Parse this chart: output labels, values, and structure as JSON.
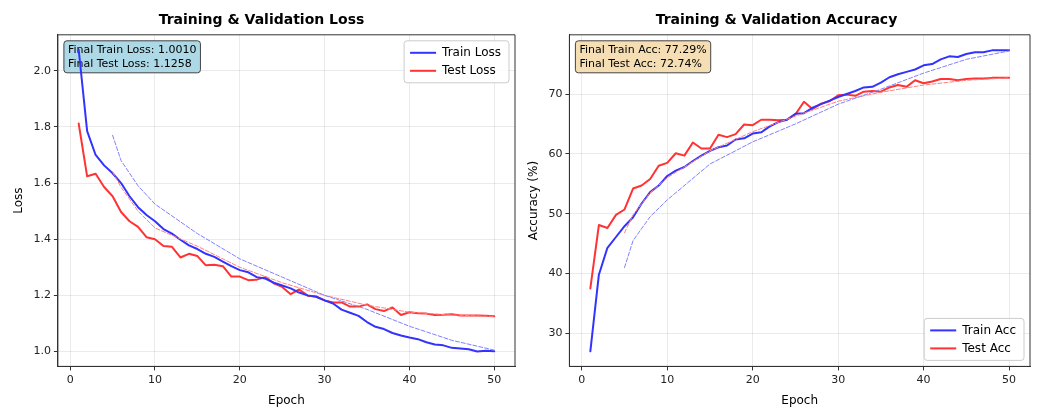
{
  "chart_data": [
    {
      "type": "line",
      "title": "Training & Validation Loss",
      "xlabel": "Epoch",
      "ylabel": "Loss",
      "x": [
        1,
        2,
        3,
        4,
        5,
        6,
        7,
        8,
        9,
        10,
        11,
        12,
        13,
        14,
        15,
        16,
        17,
        18,
        19,
        20,
        21,
        22,
        23,
        24,
        25,
        26,
        27,
        28,
        29,
        30,
        31,
        32,
        33,
        34,
        35,
        36,
        37,
        38,
        39,
        40,
        41,
        42,
        43,
        44,
        45,
        46,
        47,
        48,
        49,
        50
      ],
      "series": [
        {
          "name": "Train Loss",
          "color": "#3333ff",
          "values": [
            2.075,
            1.785,
            1.7,
            1.663,
            1.635,
            1.6,
            1.553,
            1.514,
            1.486,
            1.464,
            1.436,
            1.42,
            1.398,
            1.378,
            1.365,
            1.348,
            1.337,
            1.32,
            1.304,
            1.29,
            1.282,
            1.265,
            1.26,
            1.245,
            1.235,
            1.225,
            1.21,
            1.2,
            1.195,
            1.182,
            1.171,
            1.149,
            1.138,
            1.127,
            1.105,
            1.088,
            1.08,
            1.066,
            1.057,
            1.05,
            1.044,
            1.033,
            1.025,
            1.022,
            1.013,
            1.011,
            1.008,
            1.0,
            1.003,
            1.001
          ]
        },
        {
          "name": "Test Loss",
          "color": "#ff3333",
          "values": [
            1.812,
            1.624,
            1.633,
            1.586,
            1.553,
            1.497,
            1.464,
            1.444,
            1.407,
            1.4,
            1.376,
            1.373,
            1.335,
            1.348,
            1.34,
            1.307,
            1.309,
            1.304,
            1.267,
            1.267,
            1.254,
            1.256,
            1.265,
            1.243,
            1.23,
            1.204,
            1.221,
            1.199,
            1.196,
            1.182,
            1.175,
            1.175,
            1.16,
            1.16,
            1.168,
            1.151,
            1.144,
            1.157,
            1.13,
            1.14,
            1.136,
            1.135,
            1.13,
            1.131,
            1.133,
            1.128,
            1.128,
            1.128,
            1.127,
            1.126
          ]
        },
        {
          "type": "line",
          "line_style": "dashed",
          "color": "#8080ff",
          "x": [
            5,
            6,
            8,
            10,
            15,
            20,
            25,
            30,
            35,
            40,
            45,
            50
          ],
          "values": [
            1.77,
            1.68,
            1.59,
            1.525,
            1.42,
            1.33,
            1.265,
            1.2,
            1.15,
            1.09,
            1.04,
            1.005
          ]
        },
        {
          "type": "line",
          "line_style": "dashed",
          "color": "#ff8080",
          "x": [
            5,
            6,
            8,
            10,
            15,
            20,
            25,
            30,
            35,
            40,
            45,
            50
          ],
          "values": [
            1.64,
            1.585,
            1.5,
            1.44,
            1.375,
            1.3,
            1.245,
            1.2,
            1.165,
            1.14,
            1.13,
            1.125
          ]
        }
      ],
      "xlim": [
        -1.45,
        52.45
      ],
      "xticks": [
        0,
        10,
        20,
        30,
        40,
        50
      ],
      "ylim": [
        0.947,
        2.128
      ],
      "yticks": [
        {
          "value": 1,
          "label": "1.0"
        },
        1.2,
        1.4,
        1.6,
        1.8,
        {
          "value": 2,
          "label": "2.0"
        }
      ],
      "grid": true,
      "legend": "top right",
      "marker": "none",
      "line_style": "solid",
      "annotations": [
        "Final Train Loss: 1.0010",
        "Final Test Loss: 1.1258"
      ]
    },
    {
      "type": "line",
      "title": "Training & Validation Accuracy",
      "xlabel": "Epoch",
      "ylabel": "Accuracy (%)",
      "x": [
        1,
        2,
        3,
        4,
        5,
        6,
        7,
        8,
        9,
        10,
        11,
        12,
        13,
        14,
        15,
        16,
        17,
        18,
        19,
        20,
        21,
        22,
        23,
        24,
        25,
        26,
        27,
        28,
        29,
        30,
        31,
        32,
        33,
        34,
        35,
        36,
        37,
        38,
        39,
        40,
        41,
        42,
        43,
        44,
        45,
        46,
        47,
        48,
        49,
        50
      ],
      "series": [
        {
          "name": "Train Acc",
          "color": "#3333ff",
          "values": [
            27.0,
            39.8,
            44.3,
            46.1,
            47.9,
            49.4,
            51.7,
            53.6,
            54.7,
            56.3,
            57.2,
            57.8,
            58.8,
            59.7,
            60.5,
            61.1,
            61.4,
            62.4,
            62.6,
            63.4,
            63.6,
            64.6,
            65.3,
            65.7,
            66.7,
            66.8,
            67.7,
            68.3,
            68.9,
            69.5,
            70.0,
            70.5,
            71.1,
            71.2,
            71.9,
            72.8,
            73.3,
            73.7,
            74.1,
            74.8,
            75.0,
            75.8,
            76.3,
            76.2,
            76.7,
            77.0,
            77.0,
            77.3,
            77.3,
            77.3
          ]
        },
        {
          "name": "Test Acc",
          "color": "#ff3333",
          "values": [
            37.5,
            48.1,
            47.6,
            49.8,
            50.7,
            54.2,
            54.7,
            55.8,
            58.0,
            58.5,
            60.1,
            59.7,
            61.9,
            60.9,
            60.9,
            63.2,
            62.8,
            63.3,
            64.9,
            64.8,
            65.7,
            65.7,
            65.6,
            65.7,
            66.6,
            68.7,
            67.5,
            68.4,
            68.8,
            69.8,
            69.9,
            69.7,
            70.4,
            70.5,
            70.4,
            71.1,
            71.5,
            71.2,
            72.3,
            71.8,
            72.1,
            72.5,
            72.5,
            72.3,
            72.5,
            72.6,
            72.6,
            72.7,
            72.7,
            72.7
          ]
        },
        {
          "type": "line",
          "line_style": "dashed",
          "color": "#8080ff",
          "x": [
            5,
            6,
            8,
            10,
            15,
            20,
            25,
            30,
            35,
            40,
            45,
            50
          ],
          "values": [
            41.0,
            45.5,
            49.5,
            52.3,
            58.3,
            62.0,
            65.0,
            68.3,
            70.8,
            73.5,
            75.8,
            77.2
          ]
        },
        {
          "type": "line",
          "line_style": "dashed",
          "color": "#ff8080",
          "x": [
            5,
            6,
            8,
            10,
            15,
            20,
            25,
            30,
            35,
            40,
            45,
            50
          ],
          "values": [
            46.8,
            49.8,
            53.5,
            56.0,
            60.5,
            63.7,
            66.3,
            68.8,
            70.3,
            71.5,
            72.3,
            72.7
          ]
        }
      ],
      "xlim": [
        -1.45,
        52.45
      ],
      "xticks": [
        0,
        10,
        20,
        30,
        40,
        50
      ],
      "ylim": [
        24.47,
        79.9
      ],
      "yticks": [
        30,
        40,
        50,
        60,
        70
      ],
      "grid": true,
      "legend": "bottom right",
      "marker": "none",
      "line_style": "solid",
      "annotations": [
        "Final Train Acc: 77.29%",
        "Final Test Acc: 72.74%"
      ]
    }
  ]
}
